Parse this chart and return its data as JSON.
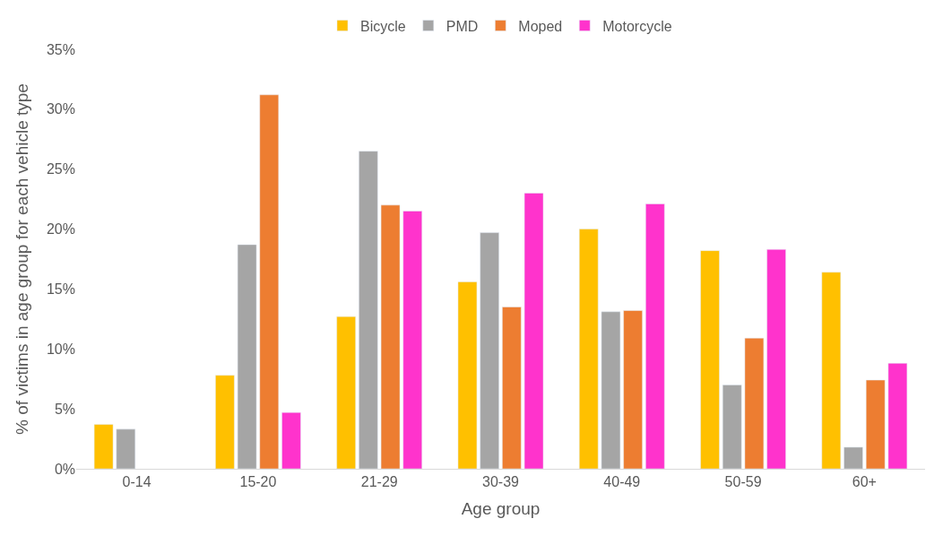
{
  "chart_data": {
    "type": "bar",
    "xlabel": "Age group",
    "ylabel": "% of victims in age group for each vehicle type",
    "categories": [
      "0-14",
      "15-20",
      "21-29",
      "30-39",
      "40-49",
      "50-59",
      "60+"
    ],
    "series": [
      {
        "name": "Bicycle",
        "color": "#ffc000",
        "values": [
          3.7,
          7.8,
          12.7,
          15.6,
          20.0,
          18.2,
          16.4
        ]
      },
      {
        "name": "PMD",
        "color": "#a5a5a5",
        "values": [
          3.3,
          18.7,
          26.5,
          19.7,
          13.1,
          7.0,
          1.8
        ]
      },
      {
        "name": "Moped",
        "color": "#ed7d31",
        "values": [
          null,
          31.2,
          22.0,
          13.5,
          13.2,
          10.9,
          7.4
        ]
      },
      {
        "name": "Motorcycle",
        "color": "#ff33cc",
        "values": [
          null,
          4.7,
          21.5,
          23.0,
          22.1,
          18.3,
          8.8
        ]
      }
    ],
    "ylim": [
      0,
      35
    ],
    "yticks": [
      {
        "value": 0,
        "label": "0%"
      },
      {
        "value": 5,
        "label": "5%"
      },
      {
        "value": 10,
        "label": "10%"
      },
      {
        "value": 15,
        "label": "15%"
      },
      {
        "value": 20,
        "label": "20%"
      },
      {
        "value": 25,
        "label": "25%"
      },
      {
        "value": 30,
        "label": "30%"
      },
      {
        "value": 35,
        "label": "35%"
      }
    ],
    "grid": false,
    "legend": "top"
  }
}
